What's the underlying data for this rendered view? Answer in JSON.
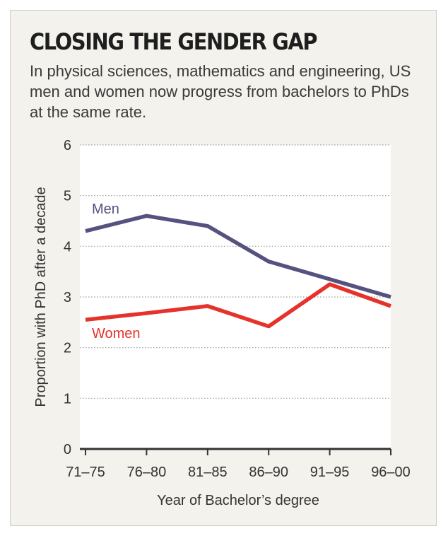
{
  "title": "CLOSING THE GENDER GAP",
  "subtitle": "In physical sciences, mathematics and engineering, US men and women now progress from bachelors to PhDs at the same rate.",
  "chart_data": {
    "type": "line",
    "categories": [
      "71–75",
      "76–80",
      "81–85",
      "86–90",
      "91–95",
      "96–00"
    ],
    "series": [
      {
        "name": "Men",
        "color": "#55527f",
        "values": [
          4.3,
          4.6,
          4.4,
          3.7,
          3.35,
          3.0
        ]
      },
      {
        "name": "Women",
        "color": "#e5322b",
        "values": [
          2.55,
          2.68,
          2.82,
          2.42,
          3.25,
          2.82
        ]
      }
    ],
    "xlabel": "Year of Bachelor’s degree",
    "ylabel": "Proportion with PhD after a decade",
    "ylim": [
      0,
      6
    ],
    "yticks": [
      0,
      1,
      2,
      3,
      4,
      5,
      6
    ],
    "grid": true,
    "plot_background": "#ffffff",
    "grid_color": "#9a9a9a"
  }
}
